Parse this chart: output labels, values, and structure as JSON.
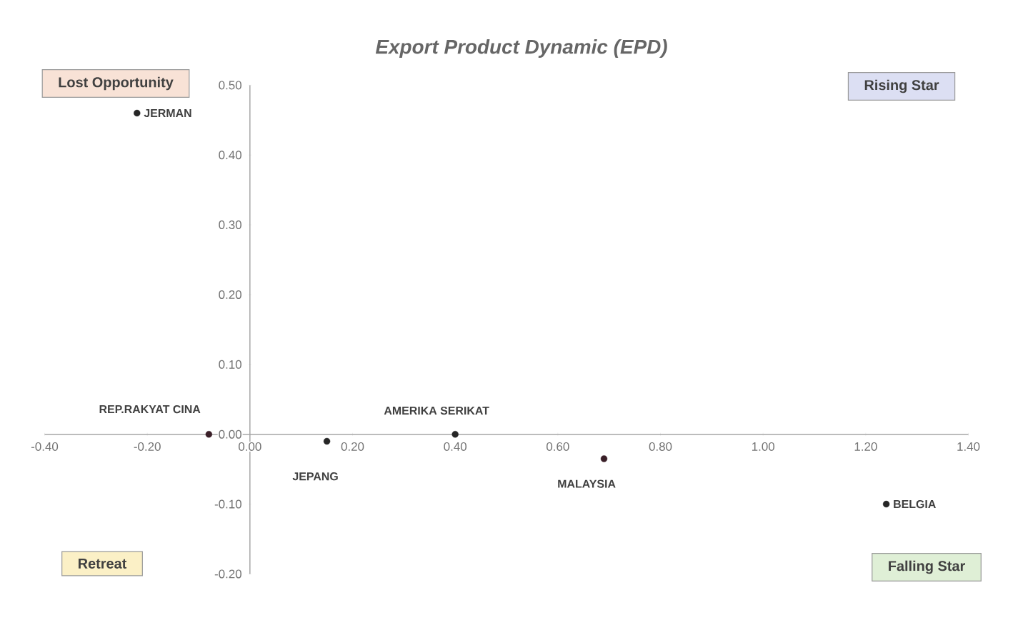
{
  "chart_data": {
    "type": "scatter",
    "title": "Export Product Dynamic (EPD)",
    "xlim": [
      -0.4,
      1.4
    ],
    "ylim": [
      -0.2,
      0.5
    ],
    "xticks": [
      {
        "value": -0.4,
        "label": "-0.40"
      },
      {
        "value": -0.2,
        "label": "-0.20"
      },
      {
        "value": 0,
        "label": "0.00"
      },
      {
        "value": 0.2,
        "label": "0.20"
      },
      {
        "value": 0.4,
        "label": "0.40"
      },
      {
        "value": 0.6,
        "label": "0.60"
      },
      {
        "value": 0.8,
        "label": "0.80"
      },
      {
        "value": 1.0,
        "label": "1.00"
      },
      {
        "value": 1.2,
        "label": "1.20"
      },
      {
        "value": 1.4,
        "label": "1.40"
      }
    ],
    "yticks": [
      {
        "value": -0.2,
        "label": "-0.20"
      },
      {
        "value": -0.1,
        "label": "-0.10"
      },
      {
        "value": 0,
        "label": "0.00"
      },
      {
        "value": 0.1,
        "label": "0.10"
      },
      {
        "value": 0.2,
        "label": "0.20"
      },
      {
        "value": 0.3,
        "label": "0.30"
      },
      {
        "value": 0.4,
        "label": "0.40"
      },
      {
        "value": 0.5,
        "label": "0.50"
      }
    ],
    "marker": "circle",
    "legend": false,
    "grid": false,
    "series": [
      {
        "name": "JERMAN",
        "color": "#262626",
        "x": [
          -0.22
        ],
        "values": [
          0.46
        ]
      },
      {
        "name": "REP.RAKYAT CINA",
        "color": "#3a1f28",
        "x": [
          -0.08
        ],
        "values": [
          0.0
        ]
      },
      {
        "name": "JEPANG",
        "color": "#262626",
        "x": [
          0.15
        ],
        "values": [
          -0.01
        ]
      },
      {
        "name": "AMERIKA SERIKAT",
        "color": "#262626",
        "x": [
          0.4
        ],
        "values": [
          0.0
        ]
      },
      {
        "name": "MALAYSIA",
        "color": "#3a1f28",
        "x": [
          0.69
        ],
        "values": [
          -0.035
        ]
      },
      {
        "name": "BELGIA",
        "color": "#262626",
        "x": [
          1.24
        ],
        "values": [
          -0.1
        ]
      }
    ],
    "annotations": [
      "Lost Opportunity",
      "Rising Star",
      "Retreat",
      "Falling Star"
    ]
  }
}
